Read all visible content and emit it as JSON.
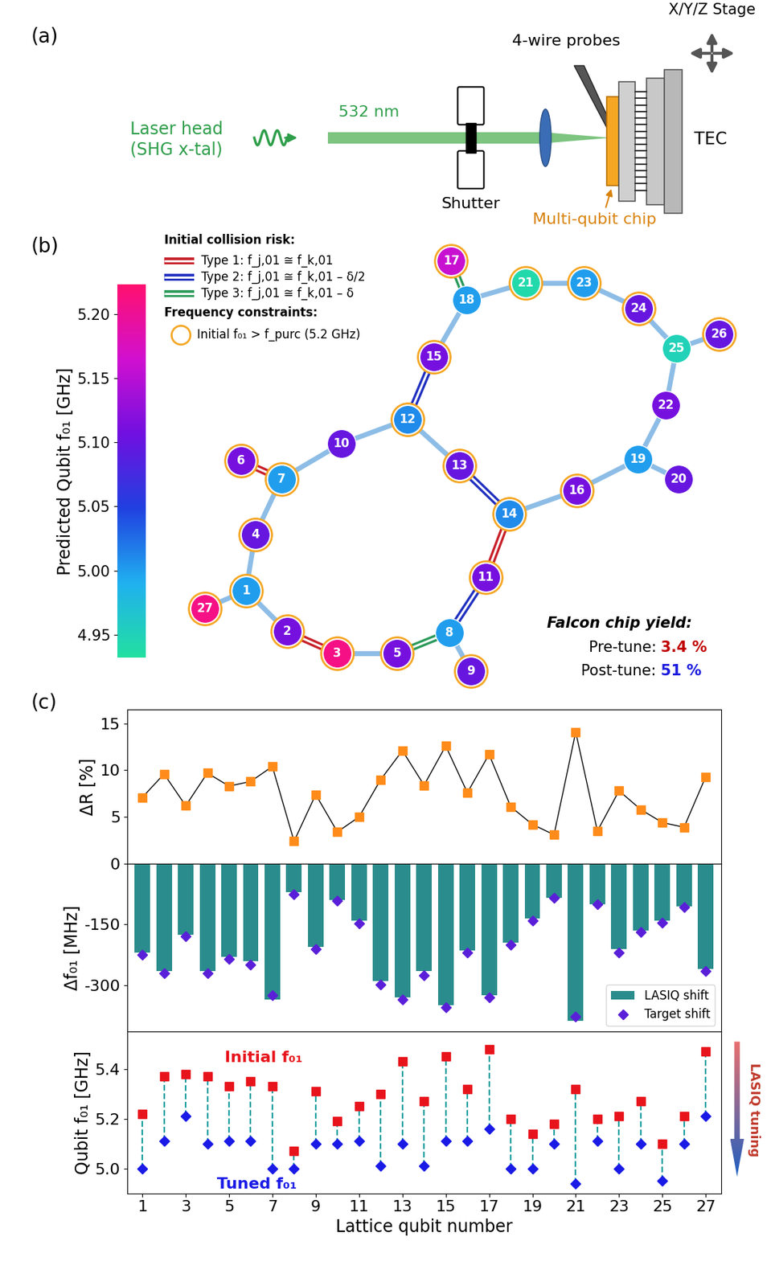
{
  "panels": {
    "a": "(a)",
    "b": "(b)",
    "c": "(c)"
  },
  "schematic": {
    "laser": "Laser head\n(SHG x-tal)",
    "wavelength": "532 nm",
    "shutter": "Shutter",
    "probes": "4-wire probes",
    "stage": "X/Y/Z Stage",
    "tec": "TEC",
    "chip": "Multi-qubit chip"
  },
  "lattice": {
    "legend_title": "Initial collision risk:",
    "collision_types": [
      {
        "type": 1,
        "label": "Type 1: f_j,01 ≅ f_k,01",
        "color": "#c8202a"
      },
      {
        "type": 2,
        "label": "Type 2: f_j,01 ≅ f_k,01 – δ/2",
        "color": "#2030c0"
      },
      {
        "type": 3,
        "label": "Type 3: f_j,01 ≅ f_k,01 – δ",
        "color": "#2a9a5a"
      }
    ],
    "constraint_title": "Frequency constraints:",
    "constraint_label": "Initial f₀₁ > f_purc (5.2 GHz)",
    "purcell_threshold": 5.2,
    "nodes": [
      1,
      2,
      3,
      4,
      5,
      6,
      7,
      8,
      9,
      10,
      11,
      12,
      13,
      14,
      15,
      16,
      17,
      18,
      19,
      20,
      21,
      22,
      23,
      24,
      25,
      26,
      27
    ],
    "edges": [
      [
        27,
        1
      ],
      [
        1,
        4
      ],
      [
        4,
        7
      ],
      [
        7,
        6
      ],
      [
        7,
        10
      ],
      [
        10,
        12
      ],
      [
        12,
        15
      ],
      [
        15,
        18
      ],
      [
        18,
        17
      ],
      [
        18,
        21
      ],
      [
        21,
        23
      ],
      [
        23,
        24
      ],
      [
        24,
        25
      ],
      [
        25,
        26
      ],
      [
        25,
        22
      ],
      [
        22,
        19
      ],
      [
        19,
        20
      ],
      [
        19,
        16
      ],
      [
        16,
        14
      ],
      [
        14,
        13
      ],
      [
        13,
        12
      ],
      [
        14,
        11
      ],
      [
        11,
        8
      ],
      [
        8,
        9
      ],
      [
        8,
        5
      ],
      [
        5,
        3
      ],
      [
        3,
        2
      ],
      [
        2,
        1
      ]
    ],
    "collisions": [
      {
        "pair": [
          6,
          7
        ],
        "type": 1
      },
      {
        "pair": [
          2,
          3
        ],
        "type": 1
      },
      {
        "pair": [
          11,
          14
        ],
        "type": 1
      },
      {
        "pair": [
          8,
          11
        ],
        "type": 2
      },
      {
        "pair": [
          13,
          14
        ],
        "type": 2
      },
      {
        "pair": [
          12,
          15
        ],
        "type": 2
      },
      {
        "pair": [
          5,
          8
        ],
        "type": 3
      },
      {
        "pair": [
          17,
          18
        ],
        "type": 3
      }
    ],
    "colorbar": {
      "label": "Predicted Qubit f₀₁ [GHz]",
      "range": [
        4.932,
        5.223
      ],
      "ticks": [
        {
          "value": 4.95,
          "label": "4.95"
        },
        {
          "value": 5.0,
          "label": "5.00"
        },
        {
          "value": 5.05,
          "label": "5.05"
        },
        {
          "value": 5.1,
          "label": "5.10"
        },
        {
          "value": 5.15,
          "label": "5.15"
        },
        {
          "value": 5.2,
          "label": "5.20"
        }
      ]
    },
    "yield_title": "Falcon chip yield:",
    "yield": [
      {
        "label": "Pre-tune:",
        "value": "3.4 %",
        "color": "#c00000"
      },
      {
        "label": "Post-tune:",
        "value": "51 %",
        "color": "#1a1adf"
      }
    ]
  },
  "chart_data": [
    {
      "type": "line",
      "ylabel": "ΔR [%]",
      "x": [
        1,
        2,
        3,
        4,
        5,
        6,
        7,
        8,
        9,
        10,
        11,
        12,
        13,
        14,
        15,
        16,
        17,
        18,
        19,
        20,
        21,
        22,
        23,
        24,
        25,
        26,
        27
      ],
      "values": [
        7.1,
        9.6,
        6.2,
        9.7,
        8.3,
        8.8,
        10.4,
        2.4,
        7.4,
        3.4,
        5.0,
        9.0,
        12.1,
        8.4,
        12.6,
        7.6,
        11.7,
        6.1,
        4.2,
        3.1,
        14.1,
        3.5,
        7.8,
        5.8,
        4.4,
        3.9,
        9.3
      ],
      "color": "#ff8c1a",
      "marker": "square",
      "line_style": "solid",
      "xlim": [
        0.3,
        27.7
      ],
      "xticks": [
        1,
        3,
        5,
        7,
        9,
        11,
        13,
        15,
        17,
        19,
        21,
        23,
        25,
        27
      ],
      "ylim": [
        0,
        16.5
      ],
      "yticks": [
        0,
        5,
        10,
        15
      ],
      "tick_labels": "y"
    },
    {
      "type": "bar",
      "ylabel": "Δf₀₁ [MHz]",
      "x": [
        1,
        2,
        3,
        4,
        5,
        6,
        7,
        8,
        9,
        10,
        11,
        12,
        13,
        14,
        15,
        16,
        17,
        18,
        19,
        20,
        21,
        22,
        23,
        24,
        25,
        26,
        27
      ],
      "series": [
        {
          "name": "LASIQ shift",
          "type": "bar",
          "color": "#2a8c8c",
          "values": [
            -220,
            -265,
            -175,
            -265,
            -230,
            -240,
            -335,
            -70,
            -205,
            -90,
            -140,
            -290,
            -330,
            -265,
            -350,
            -215,
            -325,
            -195,
            -135,
            -85,
            -388,
            -100,
            -210,
            -165,
            -140,
            -105,
            -260
          ]
        },
        {
          "name": "Target shift",
          "type": "scatter",
          "marker": "diamond",
          "color": "#5a1fd8",
          "values": [
            -225,
            -270,
            -180,
            -270,
            -235,
            -250,
            -325,
            -75,
            -210,
            -92,
            -148,
            -298,
            -335,
            -275,
            -355,
            -220,
            -330,
            -200,
            -140,
            -85,
            -378,
            -100,
            -220,
            -168,
            -145,
            -108,
            -265
          ]
        }
      ],
      "legend": "lower right",
      "xlim": [
        0.3,
        27.7
      ],
      "xticks": [
        1,
        3,
        5,
        7,
        9,
        11,
        13,
        15,
        17,
        19,
        21,
        23,
        25,
        27
      ],
      "ylim": [
        -415,
        0
      ],
      "yticks": [
        -300,
        -150
      ],
      "tick_labels": "y"
    },
    {
      "type": "scatter",
      "ylabel": "Qubit f₀₁ [GHz]",
      "xlabel": "Lattice qubit number",
      "x": [
        1,
        2,
        3,
        4,
        5,
        6,
        7,
        8,
        9,
        10,
        11,
        12,
        13,
        14,
        15,
        16,
        17,
        18,
        19,
        20,
        21,
        22,
        23,
        24,
        25,
        26,
        27
      ],
      "series": [
        {
          "name": "Initial f₀₁",
          "color": "#e8141c",
          "marker": "square",
          "values": [
            5.22,
            5.37,
            5.38,
            5.37,
            5.33,
            5.35,
            5.33,
            5.07,
            5.31,
            5.19,
            5.25,
            5.3,
            5.43,
            5.27,
            5.45,
            5.32,
            5.48,
            5.2,
            5.14,
            5.18,
            5.32,
            5.2,
            5.21,
            5.27,
            5.1,
            5.21,
            5.47
          ]
        },
        {
          "name": "Tuned f₀₁",
          "color": "#1a1ae6",
          "marker": "diamond",
          "values": [
            5.0,
            5.11,
            5.21,
            5.1,
            5.11,
            5.11,
            5.0,
            5.0,
            5.1,
            5.1,
            5.11,
            5.01,
            5.1,
            5.01,
            5.11,
            5.11,
            5.16,
            5.0,
            5.0,
            5.1,
            4.94,
            5.11,
            5.0,
            5.1,
            4.95,
            5.1,
            5.21
          ]
        }
      ],
      "annotations": [
        "LASIQ tuning"
      ],
      "xlim": [
        0.3,
        27.7
      ],
      "xticks": [
        1,
        3,
        5,
        7,
        9,
        11,
        13,
        15,
        17,
        19,
        21,
        23,
        25,
        27
      ],
      "ylim": [
        4.9,
        5.55
      ],
      "yticks": [
        5.0,
        5.2,
        5.4
      ]
    }
  ]
}
